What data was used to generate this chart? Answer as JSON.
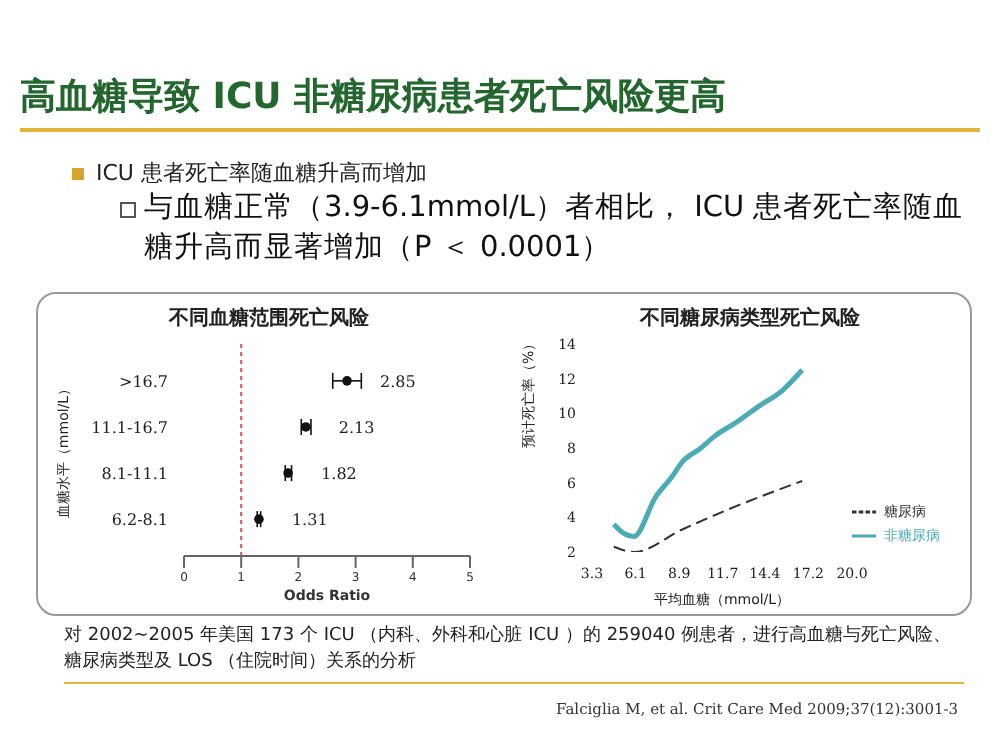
{
  "chart_data": [
    {
      "type": "scatter",
      "title": "不同血糖范围死亡风险",
      "orientation": "horizontal",
      "xlabel": "Odds Ratio",
      "ylabel": "血糖水平（mmol/L）",
      "annotations": [
        "高血糖导致 ICU 非糖尿病患者死亡风险更高",
        "ICU 患者死亡率随血糖升高而增加",
        "与血糖正常（3.9-6.1mmol/L）者相比， ICU 患者死亡率随血糖升高而显著增加（P ＜ 0.0001）"
      ],
      "categories": [
        ">16.7",
        "11.1-16.7",
        "8.1-11.1",
        "6.2-8.1"
      ],
      "values": [
        2.85,
        2.13,
        1.82,
        1.31
      ],
      "errors": [
        [
          2.6,
          3.1
        ],
        [
          2.05,
          2.22
        ],
        [
          1.77,
          1.88
        ],
        [
          1.28,
          1.34
        ]
      ],
      "color": "#111111",
      "marker": "circle",
      "data_labels": true,
      "xlim": [
        0,
        5
      ],
      "xticks": [
        0,
        1,
        2,
        3,
        4,
        5
      ],
      "ref_lines": [
        {
          "axis": "x",
          "value": 1,
          "color": "#d9534f",
          "line_style": "dotted"
        }
      ]
    },
    {
      "type": "line",
      "title": "不同糖尿病类型死亡风险",
      "xlabel": "平均血糖（mmol/L）",
      "ylabel": "预计死亡率（%）",
      "annotations": [
        "对 2002~2005 年美国 173 个 ICU （内科、外科和心脏 ICU ）的 259040 例患者，进行高血糖与死亡风险、糖尿病类型及 LOS （住院时间）关系的分析",
        "Falciglia M, et al. Crit Care Med 2009;37(12):3001-3"
      ],
      "xlim": [
        3.3,
        20
      ],
      "xticks": [
        3.3,
        6.1,
        8.9,
        11.7,
        14.4,
        17.2,
        {
          "value": 20,
          "label": "20.0"
        }
      ],
      "ylim": [
        2,
        14
      ],
      "yticks": [
        2,
        4,
        6,
        8,
        10,
        12,
        14
      ],
      "legend": "bottom right",
      "marker": "none",
      "series": [
        {
          "name": "糖尿病",
          "color": "#333333",
          "line_style": "dashed",
          "x": [
            4.7,
            6.0,
            9.1,
            11.9,
            16.8
          ],
          "values": [
            2.3,
            2.0,
            3.3,
            4.4,
            6.1
          ]
        },
        {
          "name": "非糖尿病",
          "color": "#4bacb5",
          "line_style": "solid",
          "x": [
            4.7,
            5.3,
            6.0,
            7.4,
            8.4,
            9.1,
            10.3,
            11.2,
            12.6,
            14.0,
            15.5,
            16.8
          ],
          "values": [
            3.6,
            3.1,
            2.9,
            5.2,
            6.3,
            7.2,
            8.0,
            8.7,
            9.5,
            10.4,
            11.3,
            12.5
          ]
        }
      ]
    }
  ]
}
